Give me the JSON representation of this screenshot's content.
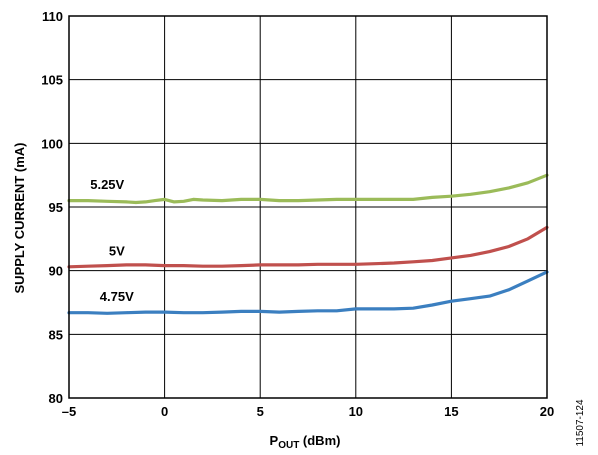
{
  "figure_id": "11507-124",
  "colors": {
    "series_5_25v": "#9bbb59",
    "series_5v": "#c0504d",
    "series_4_75v": "#3b7fc0",
    "grid": "#000000"
  },
  "chart_data": {
    "type": "line",
    "title": "",
    "xlabel": "P",
    "xlabel_sub": "OUT",
    "xlabel_unit": " (dBm)",
    "ylabel": "SUPPLY CURRENT (mA)",
    "xlim": [
      -5,
      20
    ],
    "ylim": [
      80,
      110
    ],
    "xticks": [
      -5,
      0,
      5,
      10,
      15,
      20
    ],
    "xtick_labels": [
      "–5",
      "0",
      "5",
      "10",
      "15",
      "20"
    ],
    "yticks": [
      80,
      85,
      90,
      95,
      100,
      105,
      110
    ],
    "ytick_labels": [
      "80",
      "85",
      "90",
      "95",
      "100",
      "105",
      "110"
    ],
    "grid": true,
    "legend": "inline labels",
    "series": [
      {
        "name": "5.25V",
        "color": "#9bbb59",
        "x": [
          -5,
          -4,
          -3,
          -2,
          -1.5,
          -1,
          -0.5,
          0,
          0.5,
          1,
          1.5,
          2,
          3,
          4,
          5,
          6,
          7,
          8,
          9,
          10,
          11,
          12,
          13,
          14,
          15,
          16,
          17,
          18,
          19,
          20
        ],
        "y": [
          95.5,
          95.5,
          95.45,
          95.4,
          95.35,
          95.4,
          95.5,
          95.6,
          95.4,
          95.45,
          95.6,
          95.55,
          95.5,
          95.6,
          95.6,
          95.5,
          95.5,
          95.55,
          95.6,
          95.6,
          95.6,
          95.6,
          95.6,
          95.75,
          95.85,
          96.0,
          96.2,
          96.5,
          96.9,
          97.5
        ]
      },
      {
        "name": "5V",
        "color": "#c0504d",
        "x": [
          -5,
          -4,
          -3,
          -2,
          -1,
          0,
          1,
          2,
          3,
          4,
          5,
          6,
          7,
          8,
          9,
          10,
          11,
          12,
          13,
          14,
          15,
          16,
          17,
          18,
          19,
          20
        ],
        "y": [
          90.3,
          90.35,
          90.4,
          90.45,
          90.45,
          90.4,
          90.4,
          90.35,
          90.35,
          90.4,
          90.45,
          90.45,
          90.45,
          90.5,
          90.5,
          90.5,
          90.55,
          90.6,
          90.7,
          90.8,
          91.0,
          91.2,
          91.5,
          91.9,
          92.5,
          93.4
        ]
      },
      {
        "name": "4.75V",
        "color": "#3b7fc0",
        "x": [
          -5,
          -4,
          -3,
          -2,
          -1,
          0,
          1,
          2,
          3,
          4,
          5,
          6,
          7,
          8,
          9,
          10,
          11,
          12,
          13,
          14,
          15,
          16,
          17,
          18,
          19,
          20
        ],
        "y": [
          86.7,
          86.7,
          86.65,
          86.7,
          86.75,
          86.75,
          86.7,
          86.7,
          86.75,
          86.8,
          86.8,
          86.75,
          86.8,
          86.85,
          86.85,
          87.0,
          87.0,
          87.0,
          87.05,
          87.3,
          87.6,
          87.8,
          88.0,
          88.5,
          89.2,
          89.9
        ]
      }
    ],
    "annotations": [
      {
        "text": "5.25V",
        "x": -3.0,
        "y": 96.4
      },
      {
        "text": "5V",
        "x": -2.5,
        "y": 91.2
      },
      {
        "text": "4.75V",
        "x": -2.5,
        "y": 87.6
      }
    ]
  }
}
